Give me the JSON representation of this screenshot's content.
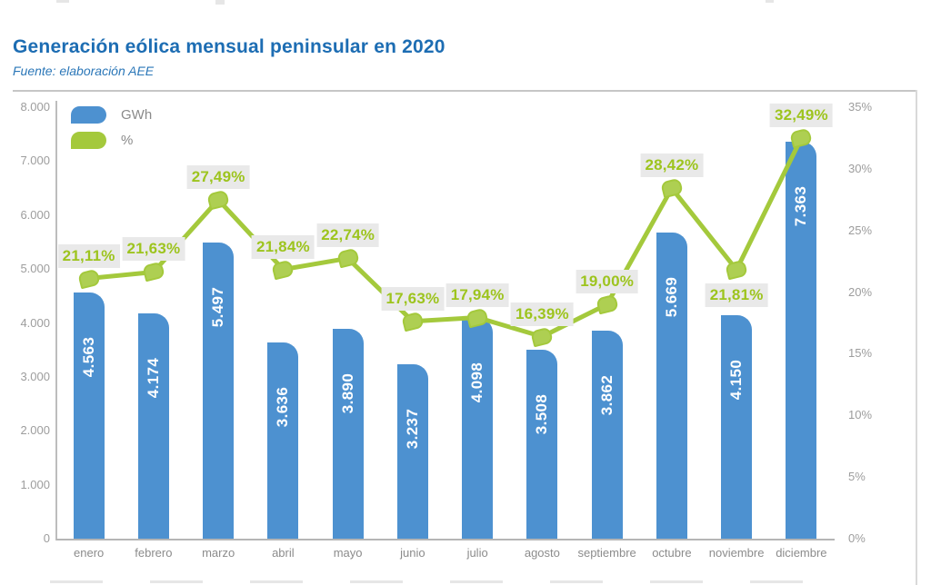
{
  "header": {
    "title": "Generación eólica mensual peninsular en 2020",
    "source": "Fuente: elaboración AEE"
  },
  "legend": {
    "items": [
      {
        "label": "GWh",
        "color": "#4D91D0"
      },
      {
        "label": "%",
        "color": "#A4C93C"
      }
    ]
  },
  "colors": {
    "title_blue": "#1D6DB3",
    "bar_blue": "#4D91D0",
    "line_green": "#A4C93C",
    "marker_fill": "#AECF52",
    "pct_text_green": "#9DC41E",
    "pct_label_bg": "#E9E9E9",
    "axis_text_gray": "#9D9D9D",
    "month_text_gray": "#8C8C8C",
    "bar_value_text": "#FFFFFF"
  },
  "chart_data": {
    "type": "bar",
    "subtype": "combo-bar-line",
    "title": "Generación eólica mensual peninsular en 2020",
    "categories": [
      "enero",
      "febrero",
      "marzo",
      "abril",
      "mayo",
      "junio",
      "julio",
      "agosto",
      "septiembre",
      "octubre",
      "noviembre",
      "diciembre"
    ],
    "series": [
      {
        "name": "GWh",
        "type": "bar",
        "color": "#4D91D0",
        "values": [
          4563,
          4174,
          5497,
          3636,
          3890,
          3237,
          4098,
          3508,
          3862,
          5669,
          4150,
          7363
        ],
        "labels": [
          "4.563",
          "4.174",
          "5.497",
          "3.636",
          "3.890",
          "3.237",
          "4.098",
          "3.508",
          "3.862",
          "5.669",
          "4.150",
          "7.363"
        ]
      },
      {
        "name": "%",
        "type": "line",
        "color": "#A4C93C",
        "values": [
          21.11,
          21.63,
          27.49,
          21.84,
          22.74,
          17.63,
          17.94,
          16.39,
          19.0,
          28.42,
          21.81,
          32.49
        ],
        "labels": [
          "21,11%",
          "21,63%",
          "27,49%",
          "21,84%",
          "22,74%",
          "17,63%",
          "17,94%",
          "16,39%",
          "19,00%",
          "28,42%",
          "21,81%",
          "32,49%"
        ],
        "label_side": [
          "above",
          "above",
          "above",
          "above",
          "above",
          "above",
          "above",
          "above",
          "above",
          "above",
          "below",
          "above"
        ]
      }
    ],
    "left_axis": {
      "min": 0,
      "max": 8000,
      "ticks": [
        "8.000",
        "7.000",
        "6.000",
        "5.000",
        "4.000",
        "3.000",
        "2.000",
        "1.000",
        "0"
      ]
    },
    "right_axis": {
      "min": 0,
      "max": 35,
      "ticks": [
        "35%",
        "30%",
        "25%",
        "20%",
        "15%",
        "10%",
        "5%",
        "0%"
      ]
    },
    "grid": false,
    "legend_position": "top-left"
  }
}
